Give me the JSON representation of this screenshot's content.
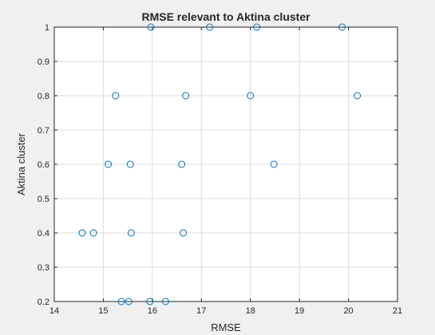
{
  "chart_data": {
    "type": "scatter",
    "title": "RMSE relevant to Aktina cluster",
    "xlabel": "RMSE",
    "ylabel": "Aktina cluster",
    "xlim": [
      14,
      21
    ],
    "ylim": [
      0.2,
      1.0
    ],
    "xticks": [
      "14",
      "15",
      "16",
      "17",
      "18",
      "19",
      "20",
      "21"
    ],
    "yticks": [
      "0.2",
      "0.3",
      "0.4",
      "0.5",
      "0.6",
      "0.7",
      "0.8",
      "0.9",
      "1"
    ],
    "grid": true,
    "marker": "open-circle",
    "marker_color": "#0072bd",
    "points": [
      {
        "x": 15.97,
        "y": 1.0
      },
      {
        "x": 17.17,
        "y": 1.0
      },
      {
        "x": 18.13,
        "y": 1.0
      },
      {
        "x": 19.87,
        "y": 1.0
      },
      {
        "x": 15.25,
        "y": 0.8
      },
      {
        "x": 16.68,
        "y": 0.8
      },
      {
        "x": 18.0,
        "y": 0.8
      },
      {
        "x": 20.18,
        "y": 0.8
      },
      {
        "x": 15.1,
        "y": 0.6
      },
      {
        "x": 15.55,
        "y": 0.6
      },
      {
        "x": 16.6,
        "y": 0.6
      },
      {
        "x": 18.48,
        "y": 0.6
      },
      {
        "x": 14.57,
        "y": 0.4
      },
      {
        "x": 14.8,
        "y": 0.4
      },
      {
        "x": 15.57,
        "y": 0.4
      },
      {
        "x": 16.63,
        "y": 0.4
      },
      {
        "x": 15.37,
        "y": 0.2
      },
      {
        "x": 15.52,
        "y": 0.2
      },
      {
        "x": 15.95,
        "y": 0.2
      },
      {
        "x": 16.27,
        "y": 0.2
      }
    ]
  },
  "colors": {
    "figure_background": "#f0f0f0",
    "axes_background": "#ffffff",
    "grid": "#dcdcdc",
    "axis_line": "#262626"
  }
}
